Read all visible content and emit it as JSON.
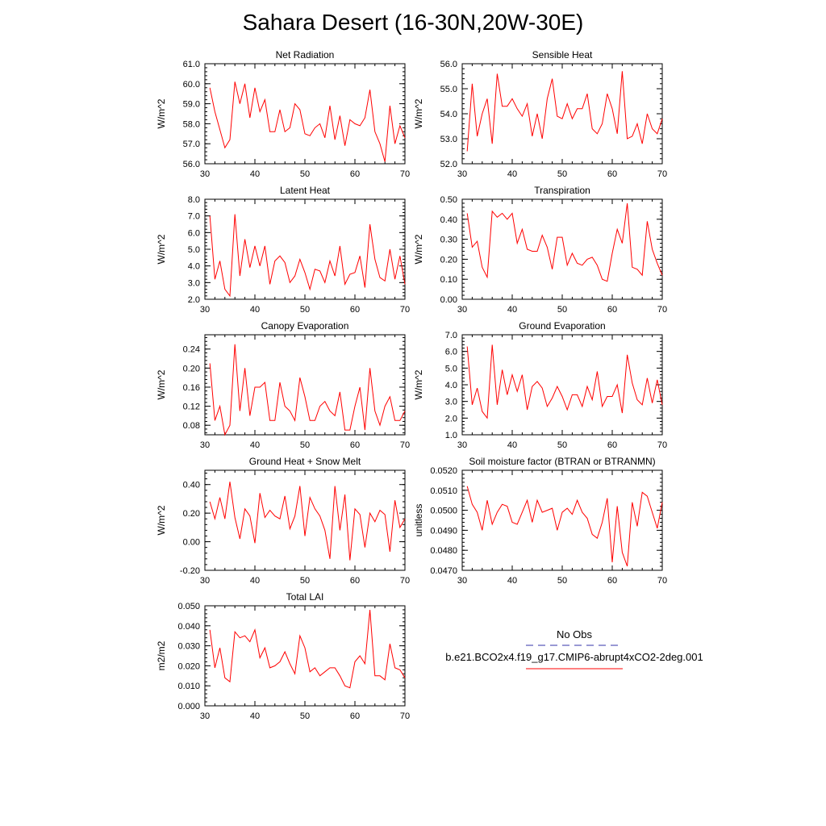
{
  "page": {
    "title": "Sahara Desert (16-30N,20W-30E)"
  },
  "legend": {
    "items": [
      {
        "label": "No Obs",
        "color": "#3333aa",
        "style": "dashed"
      },
      {
        "label": "b.e21.BCO2x4.f19_g17.CMIP6-abrupt4xCO2-2deg.001",
        "color": "#ff0000",
        "style": "solid"
      }
    ]
  },
  "chart_data": [
    {
      "type": "line",
      "title": "Net Radiation",
      "xlabel": "",
      "ylabel": "W/m^2",
      "xlim": [
        30,
        70
      ],
      "ylim": [
        56.0,
        61.0
      ],
      "yticks": [
        56.0,
        57.0,
        58.0,
        59.0,
        60.0,
        61.0
      ],
      "ydec": 1,
      "xticks": [
        30,
        40,
        50,
        60,
        70
      ],
      "grid": false,
      "series": [
        {
          "color": "#ff0000",
          "x": [
            31,
            32,
            33,
            34,
            35,
            36,
            37,
            38,
            39,
            40,
            41,
            42,
            43,
            44,
            45,
            46,
            47,
            48,
            49,
            50,
            51,
            52,
            53,
            54,
            55,
            56,
            57,
            58,
            59,
            60,
            61,
            62,
            63,
            64,
            65,
            66,
            67,
            68,
            69,
            70
          ],
          "y": [
            59.8,
            58.6,
            57.7,
            56.8,
            57.2,
            60.1,
            59.0,
            60.0,
            58.3,
            59.8,
            58.6,
            59.2,
            57.6,
            57.6,
            58.7,
            57.6,
            57.8,
            59.0,
            58.7,
            57.5,
            57.4,
            57.8,
            58.0,
            57.3,
            58.9,
            57.2,
            58.4,
            56.9,
            58.2,
            58.0,
            57.9,
            58.3,
            59.7,
            57.6,
            57.0,
            56.1,
            58.9,
            57.0,
            57.9,
            57.3
          ]
        }
      ]
    },
    {
      "type": "line",
      "title": "Sensible Heat",
      "xlabel": "",
      "ylabel": "W/m^2",
      "xlim": [
        30,
        70
      ],
      "ylim": [
        52.0,
        56.0
      ],
      "yticks": [
        52.0,
        53.0,
        54.0,
        55.0,
        56.0
      ],
      "ydec": 1,
      "xticks": [
        30,
        40,
        50,
        60,
        70
      ],
      "grid": false,
      "series": [
        {
          "color": "#ff0000",
          "x": [
            31,
            32,
            33,
            34,
            35,
            36,
            37,
            38,
            39,
            40,
            41,
            42,
            43,
            44,
            45,
            46,
            47,
            48,
            49,
            50,
            51,
            52,
            53,
            54,
            55,
            56,
            57,
            58,
            59,
            60,
            61,
            62,
            63,
            64,
            65,
            66,
            67,
            68,
            69,
            70
          ],
          "y": [
            52.5,
            55.2,
            53.1,
            54.0,
            54.6,
            52.8,
            55.6,
            54.3,
            54.3,
            54.6,
            54.2,
            53.9,
            54.4,
            53.1,
            54.0,
            53.0,
            54.6,
            55.4,
            53.9,
            53.8,
            54.4,
            53.8,
            54.2,
            54.2,
            54.8,
            53.4,
            53.2,
            53.6,
            54.8,
            54.2,
            53.2,
            55.7,
            53.0,
            53.1,
            53.6,
            52.8,
            54.0,
            53.4,
            53.2,
            53.8
          ]
        }
      ]
    },
    {
      "type": "line",
      "title": "Latent Heat",
      "xlabel": "",
      "ylabel": "W/m^2",
      "xlim": [
        30,
        70
      ],
      "ylim": [
        2.0,
        8.0
      ],
      "yticks": [
        2.0,
        3.0,
        4.0,
        5.0,
        6.0,
        7.0,
        8.0
      ],
      "ydec": 1,
      "xticks": [
        30,
        40,
        50,
        60,
        70
      ],
      "grid": false,
      "series": [
        {
          "color": "#ff0000",
          "x": [
            31,
            32,
            33,
            34,
            35,
            36,
            37,
            38,
            39,
            40,
            41,
            42,
            43,
            44,
            45,
            46,
            47,
            48,
            49,
            50,
            51,
            52,
            53,
            54,
            55,
            56,
            57,
            58,
            59,
            60,
            61,
            62,
            63,
            64,
            65,
            66,
            67,
            68,
            69,
            70
          ],
          "y": [
            7.0,
            3.2,
            4.3,
            2.6,
            2.2,
            7.1,
            3.4,
            5.6,
            3.9,
            5.2,
            4.0,
            5.2,
            2.9,
            4.3,
            4.6,
            4.2,
            3.0,
            3.4,
            4.4,
            3.6,
            2.6,
            3.8,
            3.7,
            3.0,
            4.3,
            3.4,
            5.2,
            2.9,
            3.5,
            3.6,
            4.6,
            2.7,
            6.5,
            4.4,
            3.3,
            3.1,
            5.0,
            3.2,
            4.6,
            2.9
          ]
        }
      ]
    },
    {
      "type": "line",
      "title": "Transpiration",
      "xlabel": "",
      "ylabel": "W/m^2",
      "xlim": [
        30,
        70
      ],
      "ylim": [
        0.0,
        0.5
      ],
      "yticks": [
        0.0,
        0.1,
        0.2,
        0.3,
        0.4,
        0.5
      ],
      "ydec": 2,
      "xticks": [
        30,
        40,
        50,
        60,
        70
      ],
      "grid": false,
      "series": [
        {
          "color": "#ff0000",
          "x": [
            31,
            32,
            33,
            34,
            35,
            36,
            37,
            38,
            39,
            40,
            41,
            42,
            43,
            44,
            45,
            46,
            47,
            48,
            49,
            50,
            51,
            52,
            53,
            54,
            55,
            56,
            57,
            58,
            59,
            60,
            61,
            62,
            63,
            64,
            65,
            66,
            67,
            68,
            69,
            70
          ],
          "y": [
            0.43,
            0.26,
            0.29,
            0.16,
            0.11,
            0.44,
            0.41,
            0.43,
            0.4,
            0.43,
            0.28,
            0.35,
            0.25,
            0.24,
            0.24,
            0.32,
            0.26,
            0.15,
            0.31,
            0.31,
            0.17,
            0.23,
            0.18,
            0.17,
            0.2,
            0.21,
            0.17,
            0.1,
            0.09,
            0.23,
            0.35,
            0.28,
            0.48,
            0.16,
            0.15,
            0.12,
            0.39,
            0.25,
            0.18,
            0.12
          ]
        }
      ]
    },
    {
      "type": "line",
      "title": "Canopy Evaporation",
      "xlabel": "",
      "ylabel": "W/m^2",
      "xlim": [
        30,
        70
      ],
      "ylim": [
        0.06,
        0.27
      ],
      "yticks": [
        0.08,
        0.12,
        0.16,
        0.2,
        0.24
      ],
      "ydec": 2,
      "xticks": [
        30,
        40,
        50,
        60,
        70
      ],
      "grid": false,
      "series": [
        {
          "color": "#ff0000",
          "x": [
            31,
            32,
            33,
            34,
            35,
            36,
            37,
            38,
            39,
            40,
            41,
            42,
            43,
            44,
            45,
            46,
            47,
            48,
            49,
            50,
            51,
            52,
            53,
            54,
            55,
            56,
            57,
            58,
            59,
            60,
            61,
            62,
            63,
            64,
            65,
            66,
            67,
            68,
            69,
            70
          ],
          "y": [
            0.21,
            0.09,
            0.12,
            0.06,
            0.08,
            0.25,
            0.11,
            0.2,
            0.1,
            0.16,
            0.16,
            0.17,
            0.09,
            0.09,
            0.17,
            0.12,
            0.11,
            0.09,
            0.18,
            0.14,
            0.09,
            0.09,
            0.12,
            0.13,
            0.11,
            0.1,
            0.15,
            0.07,
            0.07,
            0.12,
            0.16,
            0.07,
            0.2,
            0.11,
            0.08,
            0.12,
            0.14,
            0.09,
            0.09,
            0.11
          ]
        }
      ]
    },
    {
      "type": "line",
      "title": "Ground Evaporation",
      "xlabel": "",
      "ylabel": "W/m^2",
      "xlim": [
        30,
        70
      ],
      "ylim": [
        1.0,
        7.0
      ],
      "yticks": [
        1.0,
        2.0,
        3.0,
        4.0,
        5.0,
        6.0,
        7.0
      ],
      "ydec": 1,
      "xticks": [
        30,
        40,
        50,
        60,
        70
      ],
      "grid": false,
      "series": [
        {
          "color": "#ff0000",
          "x": [
            31,
            32,
            33,
            34,
            35,
            36,
            37,
            38,
            39,
            40,
            41,
            42,
            43,
            44,
            45,
            46,
            47,
            48,
            49,
            50,
            51,
            52,
            53,
            54,
            55,
            56,
            57,
            58,
            59,
            60,
            61,
            62,
            63,
            64,
            65,
            66,
            67,
            68,
            69,
            70
          ],
          "y": [
            6.3,
            2.8,
            3.8,
            2.4,
            2.0,
            6.4,
            2.8,
            4.9,
            3.4,
            4.6,
            3.6,
            4.6,
            2.5,
            3.9,
            4.2,
            3.8,
            2.7,
            3.2,
            3.9,
            3.3,
            2.5,
            3.4,
            3.4,
            2.7,
            3.9,
            3.1,
            4.8,
            2.7,
            3.3,
            3.3,
            4.0,
            2.3,
            5.8,
            4.1,
            3.1,
            2.8,
            4.4,
            2.9,
            4.3,
            2.8
          ]
        }
      ]
    },
    {
      "type": "line",
      "title": "Ground Heat + Snow Melt",
      "xlabel": "",
      "ylabel": "W/m^2",
      "xlim": [
        30,
        70
      ],
      "ylim": [
        -0.2,
        0.5
      ],
      "yticks": [
        -0.2,
        0.0,
        0.2,
        0.4
      ],
      "ydec": 2,
      "xticks": [
        30,
        40,
        50,
        60,
        70
      ],
      "grid": false,
      "series": [
        {
          "color": "#ff0000",
          "x": [
            31,
            32,
            33,
            34,
            35,
            36,
            37,
            38,
            39,
            40,
            41,
            42,
            43,
            44,
            45,
            46,
            47,
            48,
            49,
            50,
            51,
            52,
            53,
            54,
            55,
            56,
            57,
            58,
            59,
            60,
            61,
            62,
            63,
            64,
            65,
            66,
            67,
            68,
            69,
            70
          ],
          "y": [
            0.28,
            0.16,
            0.31,
            0.16,
            0.42,
            0.17,
            0.02,
            0.23,
            0.18,
            -0.01,
            0.34,
            0.17,
            0.22,
            0.18,
            0.16,
            0.32,
            0.09,
            0.18,
            0.39,
            0.04,
            0.31,
            0.23,
            0.18,
            0.08,
            -0.12,
            0.39,
            0.08,
            0.33,
            -0.13,
            0.23,
            0.19,
            -0.04,
            0.2,
            0.14,
            0.22,
            0.19,
            -0.07,
            0.29,
            0.1,
            0.16
          ]
        }
      ]
    },
    {
      "type": "line",
      "title": "Soil moisture factor (BTRAN or BTRANMN)",
      "xlabel": "",
      "ylabel": "unitless",
      "xlim": [
        30,
        70
      ],
      "ylim": [
        0.047,
        0.052
      ],
      "yticks": [
        0.047,
        0.048,
        0.049,
        0.05,
        0.051,
        0.052
      ],
      "ydec": 4,
      "xticks": [
        30,
        40,
        50,
        60,
        70
      ],
      "grid": false,
      "series": [
        {
          "color": "#ff0000",
          "x": [
            31,
            32,
            33,
            34,
            35,
            36,
            37,
            38,
            39,
            40,
            41,
            42,
            43,
            44,
            45,
            46,
            47,
            48,
            49,
            50,
            51,
            52,
            53,
            54,
            55,
            56,
            57,
            58,
            59,
            60,
            61,
            62,
            63,
            64,
            65,
            66,
            67,
            68,
            69,
            70
          ],
          "y": [
            0.0512,
            0.0503,
            0.0499,
            0.049,
            0.0505,
            0.0493,
            0.0499,
            0.0503,
            0.0502,
            0.0494,
            0.0493,
            0.0499,
            0.0505,
            0.0494,
            0.0505,
            0.0499,
            0.05,
            0.0501,
            0.049,
            0.0499,
            0.0501,
            0.0498,
            0.0505,
            0.0499,
            0.0496,
            0.0488,
            0.0486,
            0.0494,
            0.0506,
            0.0474,
            0.0502,
            0.0479,
            0.0472,
            0.0504,
            0.0492,
            0.0509,
            0.0507,
            0.0499,
            0.0491,
            0.0504
          ]
        }
      ]
    },
    {
      "type": "line",
      "title": "Total LAI",
      "xlabel": "",
      "ylabel": "m2/m2",
      "xlim": [
        30,
        70
      ],
      "ylim": [
        0.0,
        0.05
      ],
      "yticks": [
        0.0,
        0.01,
        0.02,
        0.03,
        0.04,
        0.05
      ],
      "ydec": 3,
      "xticks": [
        30,
        40,
        50,
        60,
        70
      ],
      "grid": false,
      "series": [
        {
          "color": "#ff0000",
          "x": [
            31,
            32,
            33,
            34,
            35,
            36,
            37,
            38,
            39,
            40,
            41,
            42,
            43,
            44,
            45,
            46,
            47,
            48,
            49,
            50,
            51,
            52,
            53,
            54,
            55,
            56,
            57,
            58,
            59,
            60,
            61,
            62,
            63,
            64,
            65,
            66,
            67,
            68,
            69,
            70
          ],
          "y": [
            0.038,
            0.019,
            0.029,
            0.014,
            0.012,
            0.037,
            0.034,
            0.035,
            0.032,
            0.038,
            0.024,
            0.029,
            0.019,
            0.02,
            0.022,
            0.027,
            0.021,
            0.016,
            0.035,
            0.029,
            0.017,
            0.019,
            0.015,
            0.017,
            0.019,
            0.019,
            0.015,
            0.01,
            0.009,
            0.022,
            0.025,
            0.021,
            0.048,
            0.015,
            0.015,
            0.013,
            0.031,
            0.019,
            0.018,
            0.014
          ]
        }
      ]
    }
  ]
}
